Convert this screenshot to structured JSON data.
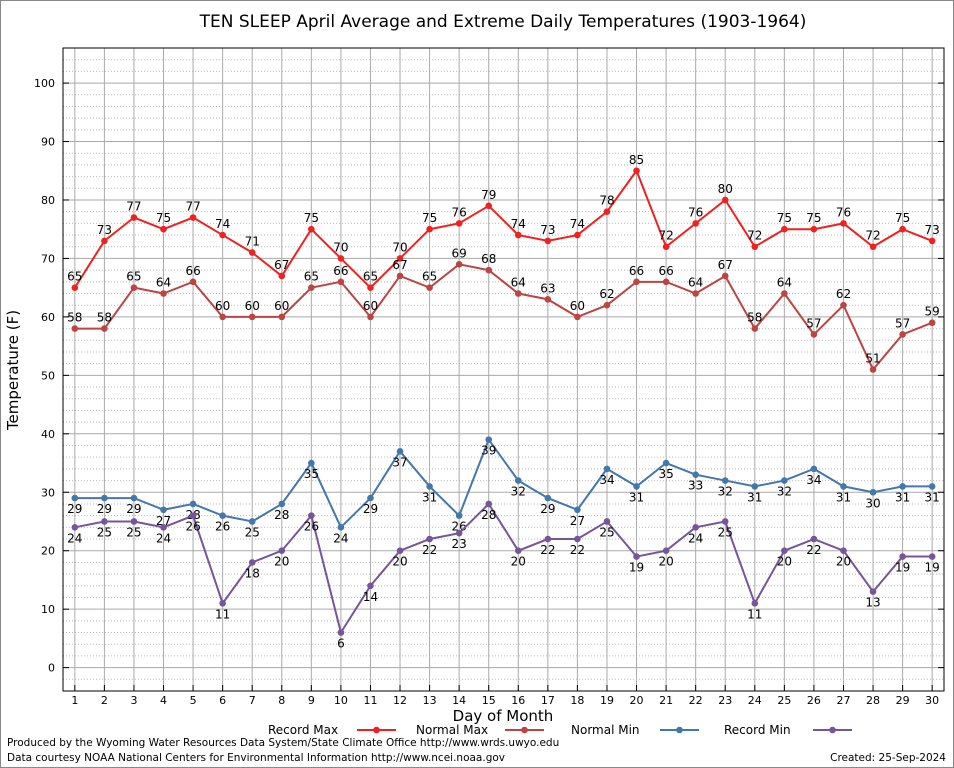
{
  "chart_data": {
    "type": "line",
    "title": "TEN SLEEP April Average and Extreme Daily Temperatures (1903-1964)",
    "xlabel": "Day of Month",
    "ylabel": "Temperature (F)",
    "x": [
      1,
      2,
      3,
      4,
      5,
      6,
      7,
      8,
      9,
      10,
      11,
      12,
      13,
      14,
      15,
      16,
      17,
      18,
      19,
      20,
      21,
      22,
      23,
      24,
      25,
      26,
      27,
      28,
      29,
      30
    ],
    "xlim": [
      0.6,
      30.4
    ],
    "ylim": [
      -4,
      106
    ],
    "yticks": [
      0,
      10,
      20,
      30,
      40,
      50,
      60,
      70,
      80,
      90,
      100
    ],
    "grid": true,
    "legend_position": "bottom",
    "series": [
      {
        "name": "Record Max",
        "color": "#ee2222",
        "label_pos": "above",
        "values": [
          65,
          73,
          77,
          75,
          77,
          74,
          71,
          67,
          75,
          70,
          65,
          70,
          75,
          76,
          79,
          74,
          73,
          74,
          78,
          85,
          72,
          76,
          80,
          72,
          75,
          75,
          76,
          72,
          75,
          73
        ]
      },
      {
        "name": "Normal Max",
        "color": "#bb4444",
        "label_pos": "above",
        "values": [
          58,
          58,
          65,
          64,
          66,
          60,
          60,
          60,
          65,
          66,
          60,
          67,
          65,
          69,
          68,
          64,
          63,
          60,
          62,
          66,
          66,
          64,
          67,
          58,
          64,
          57,
          62,
          51,
          57,
          59
        ]
      },
      {
        "name": "Normal Min",
        "color": "#4477aa",
        "label_pos": "below",
        "values": [
          29,
          29,
          29,
          27,
          28,
          26,
          25,
          28,
          35,
          24,
          29,
          37,
          31,
          26,
          39,
          32,
          29,
          27,
          34,
          31,
          35,
          33,
          32,
          31,
          32,
          34,
          31,
          30,
          31,
          31
        ]
      },
      {
        "name": "Record Min",
        "color": "#775599",
        "label_pos": "below",
        "values": [
          24,
          25,
          25,
          24,
          26,
          11,
          18,
          20,
          26,
          6,
          14,
          20,
          22,
          23,
          28,
          20,
          22,
          22,
          25,
          19,
          20,
          24,
          25,
          11,
          20,
          22,
          20,
          13,
          19,
          19
        ]
      }
    ]
  },
  "footer": {
    "produced_by": "Produced by the Wyoming Water Resources Data System/State Climate Office http://www.wrds.uwyo.edu",
    "data_courtesy": "Data courtesy NOAA National Centers for Environmental Information http://www.ncei.noaa.gov",
    "created": "Created:  25-Sep-2024"
  }
}
